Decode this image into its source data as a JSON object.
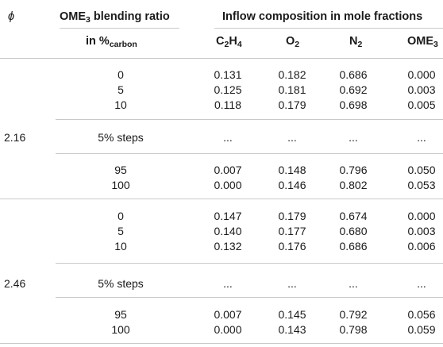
{
  "header": {
    "phi_symbol": "ϕ",
    "ratio_title": "OME",
    "ratio_title_sub": "3",
    "ratio_title_rest": " blending ratio",
    "ratio_unit_prefix": "in %",
    "ratio_unit_sub": "carbon",
    "inflow_title": "Inflow composition in mole fractions",
    "cols": [
      {
        "main": "C",
        "sub1": "2",
        "mid": "H",
        "sub2": "4"
      },
      {
        "main": "O",
        "sub1": "2"
      },
      {
        "main": "N",
        "sub1": "2"
      },
      {
        "main": "OME",
        "sub1": "3"
      }
    ]
  },
  "groups": [
    {
      "phi": "2.16",
      "rows_top": [
        {
          "ratio": "0",
          "c2h4": "0.131",
          "o2": "0.182",
          "n2": "0.686",
          "ome3": "0.000"
        },
        {
          "ratio": "5",
          "c2h4": "0.125",
          "o2": "0.181",
          "n2": "0.692",
          "ome3": "0.003"
        },
        {
          "ratio": "10",
          "c2h4": "0.118",
          "o2": "0.179",
          "n2": "0.698",
          "ome3": "0.005"
        }
      ],
      "steps": {
        "ratio": "5% steps",
        "c2h4": "...",
        "o2": "...",
        "n2": "...",
        "ome3": "..."
      },
      "rows_bottom": [
        {
          "ratio": "95",
          "c2h4": "0.007",
          "o2": "0.148",
          "n2": "0.796",
          "ome3": "0.050"
        },
        {
          "ratio": "100",
          "c2h4": "0.000",
          "o2": "0.146",
          "n2": "0.802",
          "ome3": "0.053"
        }
      ]
    },
    {
      "phi": "2.46",
      "rows_top": [
        {
          "ratio": "0",
          "c2h4": "0.147",
          "o2": "0.179",
          "n2": "0.674",
          "ome3": "0.000"
        },
        {
          "ratio": "5",
          "c2h4": "0.140",
          "o2": "0.177",
          "n2": "0.680",
          "ome3": "0.003"
        },
        {
          "ratio": "10",
          "c2h4": "0.132",
          "o2": "0.176",
          "n2": "0.686",
          "ome3": "0.006"
        }
      ],
      "steps": {
        "ratio": "5% steps",
        "c2h4": "...",
        "o2": "...",
        "n2": "...",
        "ome3": "..."
      },
      "rows_bottom": [
        {
          "ratio": "95",
          "c2h4": "0.007",
          "o2": "0.145",
          "n2": "0.792",
          "ome3": "0.056"
        },
        {
          "ratio": "100",
          "c2h4": "0.000",
          "o2": "0.143",
          "n2": "0.798",
          "ome3": "0.059"
        }
      ]
    }
  ]
}
